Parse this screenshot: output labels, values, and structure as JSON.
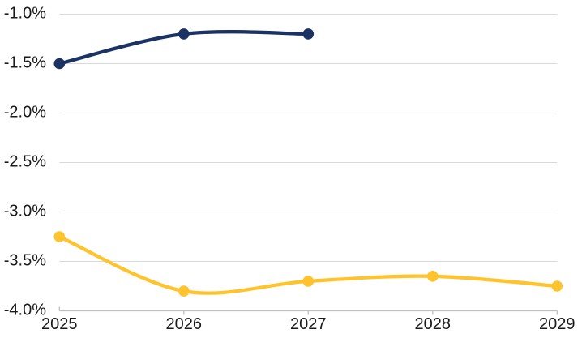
{
  "chart_data": {
    "type": "line",
    "smooth": true,
    "marker": "circle",
    "title": "",
    "xlabel": "",
    "ylabel": "",
    "legend": "none",
    "grid": "horizontal",
    "categories": [
      "2025",
      "2026",
      "2027",
      "2028",
      "2029"
    ],
    "series": [
      {
        "name": "navy-series",
        "color": "#1B3264",
        "values": [
          -1.5,
          -1.2,
          -1.2,
          null,
          null
        ]
      },
      {
        "name": "gold-series",
        "color": "#FFC42D",
        "values": [
          -3.25,
          -3.8,
          -3.7,
          -3.65,
          -3.75
        ]
      }
    ],
    "ylim": [
      -4.0,
      -1.0
    ],
    "ytick_step": 0.5,
    "yticks": [
      {
        "value": -1.0,
        "label": "-1.0%"
      },
      {
        "value": -1.5,
        "label": "-1.5%"
      },
      {
        "value": -2.0,
        "label": "-2.0%"
      },
      {
        "value": -2.5,
        "label": "-2.5%"
      },
      {
        "value": -3.0,
        "label": "-3.0%"
      },
      {
        "value": -3.5,
        "label": "-3.5%"
      },
      {
        "value": -4.0,
        "label": "-4.0%"
      }
    ]
  },
  "style": {
    "gridline_color": "#D9D9D9",
    "axis_color": "#BFBFBF",
    "label_color": "#1A1A1A",
    "background_color": "#FFFFFF"
  }
}
